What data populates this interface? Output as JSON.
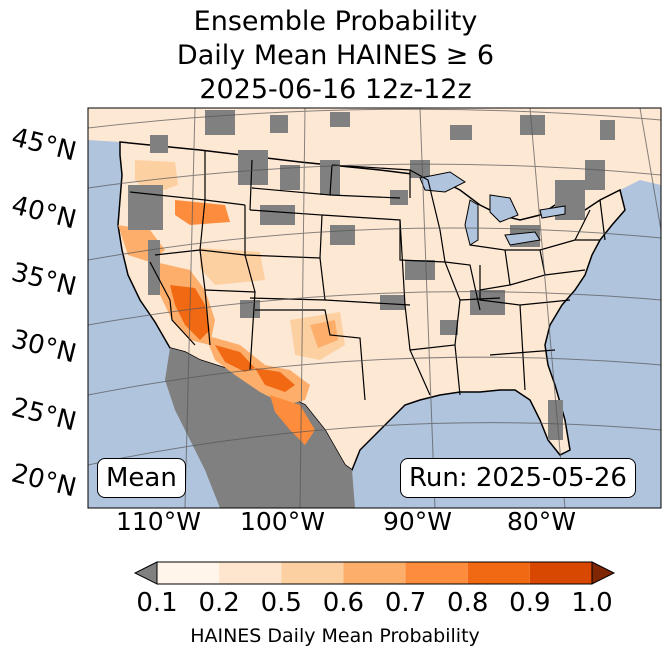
{
  "title": {
    "line1": "Ensemble Probability",
    "line2": "Daily Mean HAINES ≥ 6",
    "line3": "2025-06-16 12z-12z"
  },
  "map": {
    "region": "CONUS",
    "ocean_color": "#b0c4de",
    "land_color": "#fde8d4",
    "missing_color": "#808080",
    "gridline_color": "#555555",
    "lat_labels": [
      "45°N",
      "40°N",
      "35°N",
      "30°N",
      "25°N",
      "20°N"
    ],
    "lon_labels": [
      "110°W",
      "100°W",
      "90°W",
      "80°W"
    ]
  },
  "annotations": {
    "left_box": "Mean",
    "right_box": "Run: 2025-05-26"
  },
  "colorbar": {
    "label": "HAINES Daily Mean Probability",
    "ticks": [
      "0.1",
      "0.2",
      "0.5",
      "0.6",
      "0.7",
      "0.8",
      "0.9",
      "1.0"
    ],
    "under_color": "#808080",
    "over_color": "#7f2704",
    "colors": [
      "#fff5eb",
      "#fee6ce",
      "#fdd0a2",
      "#fdae6b",
      "#fd8d3c",
      "#f16913",
      "#d94801"
    ]
  }
}
